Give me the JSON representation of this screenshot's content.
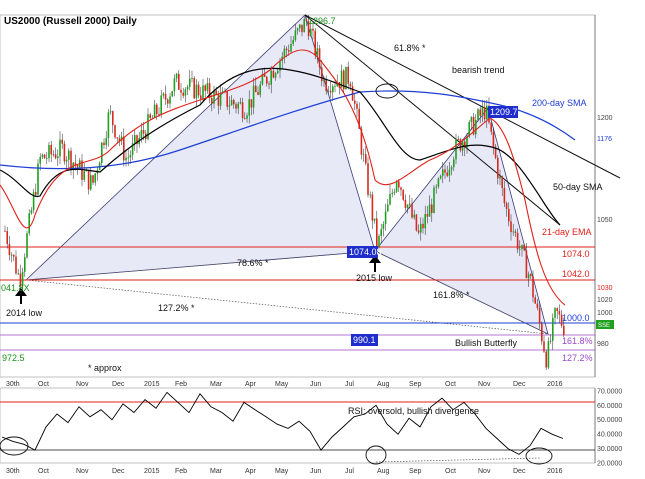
{
  "chart_data": [
    {
      "type": "candlestick",
      "title": "US2000 (Russell 2000) Daily",
      "y_tick_labels": [
        "1200",
        "1176",
        "1050",
        "1030",
        "1020",
        "1000",
        "980"
      ],
      "y_tick_values": [
        1200,
        1176,
        1050,
        1030,
        1020,
        1000,
        980
      ],
      "x_tick_labels": [
        "30th",
        "Oct",
        "Nov",
        "Dec",
        "2015",
        "Feb",
        "Mar",
        "Apr",
        "May",
        "Jun",
        "Jul",
        "Aug",
        "Sep",
        "Oct",
        "Nov",
        "Dec",
        "2016"
      ],
      "ohlc_close_path": [
        [
          "2014-09-30",
          1090
        ],
        [
          "2014-10-13",
          1042
        ],
        [
          "2014-10-31",
          1160
        ],
        [
          "2014-11-20",
          1170
        ],
        [
          "2014-12-16",
          1135
        ],
        [
          "2014-12-31",
          1205
        ],
        [
          "2015-01-15",
          1160
        ],
        [
          "2015-02-27",
          1235
        ],
        [
          "2015-03-25",
          1225
        ],
        [
          "2015-04-30",
          1210
        ],
        [
          "2015-06-23",
          1296
        ],
        [
          "2015-07-08",
          1235
        ],
        [
          "2015-07-31",
          1240
        ],
        [
          "2015-08-24",
          1074
        ],
        [
          "2015-09-10",
          1145
        ],
        [
          "2015-09-29",
          1085
        ],
        [
          "2015-10-30",
          1168
        ],
        [
          "2015-11-27",
          1209
        ],
        [
          "2015-12-14",
          1115
        ],
        [
          "2016-01-05",
          1045
        ],
        [
          "2016-01-20",
          964
        ],
        [
          "2016-01-28",
          1010
        ],
        [
          "2016-02-05",
          995
        ]
      ],
      "series": [
        {
          "name": "200-day SMA",
          "color": "#1e3ed6"
        },
        {
          "name": "50-day SMA",
          "color": "#000000"
        },
        {
          "name": "21-day EMA",
          "color": "#e0211a"
        }
      ],
      "horizontal_levels": [
        {
          "label": "1074.0",
          "value": 1074.0,
          "color": "#e0211a"
        },
        {
          "label": "1042.0",
          "value": 1042.0,
          "color": "#e0211a"
        },
        {
          "label": "1000.0",
          "value": 1000.0,
          "color": "#1e3ed6"
        },
        {
          "label": "161.8%",
          "value": 985,
          "color": "#9b48c7"
        },
        {
          "label": "127.2%",
          "value": 972.5,
          "color": "#9b48c7"
        }
      ],
      "pattern": {
        "name": "Bullish Butterfly",
        "points": [
          {
            "label": "041.8X",
            "value": 1041.8
          },
          {
            "label": "1296.7",
            "value": 1296.7
          },
          {
            "label": "1074.08",
            "value": 1074.08
          },
          {
            "label": "1209.7",
            "value": 1209.7
          },
          {
            "label": "990.1",
            "value": 990.1
          }
        ],
        "ratios": [
          "78.6% *",
          "127.2% *",
          "161.8% *",
          "61.8% *"
        ]
      },
      "annotations": [
        "bearish trend",
        "200-day SMA",
        "50-day SMA",
        "21-day EMA",
        "2015 low",
        "2014 low",
        "Bullish Butterfly",
        "* approx",
        "972.5"
      ],
      "current_price_label": "SSE"
    },
    {
      "type": "line",
      "name": "RSI",
      "annotation": "RSI: oversold, bullish divergence",
      "y_tick_labels": [
        "70.0000",
        "60.0000",
        "50.0000",
        "40.0000",
        "30.0000",
        "20.0000"
      ],
      "ylim": [
        20,
        72
      ],
      "levels": [
        70,
        30
      ],
      "values": [
        38,
        36,
        33,
        30,
        45,
        55,
        48,
        60,
        52,
        58,
        50,
        62,
        55,
        65,
        58,
        70,
        62,
        56,
        68,
        60,
        55,
        50,
        62,
        58,
        52,
        48,
        44,
        50,
        42,
        30,
        38,
        46,
        52,
        55,
        60,
        48,
        40,
        52,
        45,
        60,
        65,
        58,
        62,
        55,
        44,
        38,
        30,
        27,
        32,
        45,
        40,
        38
      ]
    }
  ]
}
